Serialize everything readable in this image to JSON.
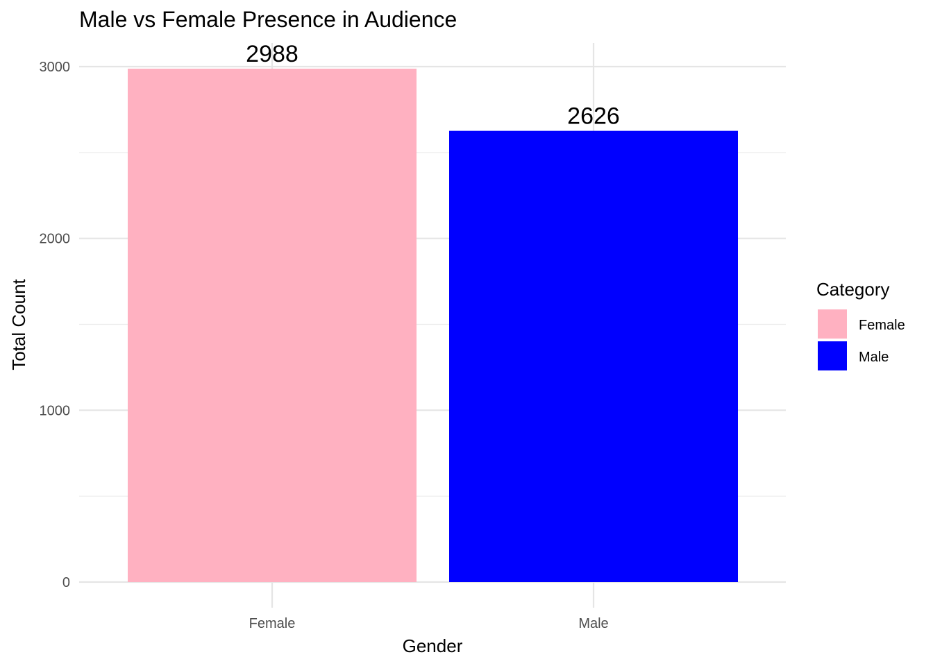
{
  "chart_data": {
    "type": "bar",
    "title": "Male vs Female Presence in Audience",
    "xlabel": "Gender",
    "ylabel": "Total Count",
    "categories": [
      "Female",
      "Male"
    ],
    "values": [
      2988,
      2626
    ],
    "value_labels": [
      "2988",
      "2626"
    ],
    "colors": [
      "#FFB1C1",
      "#0000FF"
    ],
    "ylim": [
      0,
      3100
    ],
    "yticks": [
      0,
      1000,
      2000,
      3000
    ],
    "ytick_labels": [
      "0",
      "1000",
      "2000",
      "3000"
    ],
    "grid": true,
    "legend": {
      "title": "Category",
      "placement": "right",
      "entries": [
        {
          "label": "Female",
          "color": "#FFB1C1"
        },
        {
          "label": "Male",
          "color": "#0000FF"
        }
      ]
    }
  }
}
